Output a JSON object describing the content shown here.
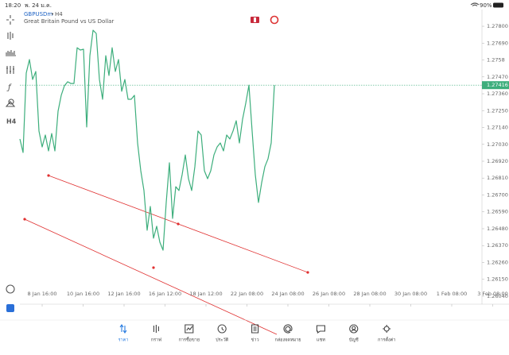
{
  "status_bar": {
    "time": "18:20",
    "date": "พ. 24 ม.ค.",
    "battery": "90%"
  },
  "chart_data": {
    "type": "line",
    "symbol": "GBPUSDm",
    "timeframe": "H4",
    "description": "Great Britain Pound vs US Dollar",
    "color": "#3dae7c",
    "values": [
      1.27065,
      1.26977,
      1.27495,
      1.27583,
      1.27453,
      1.27505,
      1.27117,
      1.27013,
      1.27091,
      1.26987,
      1.27101,
      1.26987,
      1.27246,
      1.2735,
      1.27412,
      1.27438,
      1.27427,
      1.27427,
      1.2766,
      1.27645,
      1.2765,
      1.27143,
      1.27608,
      1.27774,
      1.27753,
      1.27453,
      1.27324,
      1.27608,
      1.27479,
      1.2766,
      1.27505,
      1.27583,
      1.27376,
      1.27453,
      1.27324,
      1.27324,
      1.2735,
      1.27039,
      1.26858,
      1.26729,
      1.2647,
      1.26625,
      1.26418,
      1.26496,
      1.26392,
      1.2634,
      1.26651,
      1.2691,
      1.26547,
      1.26754,
      1.26729,
      1.26832,
      1.26961,
      1.26806,
      1.26729,
      1.26884,
      1.27117,
      1.27091,
      1.26858,
      1.26806,
      1.26858,
      1.26961,
      1.27013,
      1.27039,
      1.26987,
      1.27091,
      1.27065,
      1.27117,
      1.27184,
      1.27039,
      1.27194,
      1.27298,
      1.27416,
      1.27117,
      1.26832,
      1.26651,
      1.2678,
      1.26884,
      1.26936,
      1.27039,
      1.27416
    ],
    "current_price": 1.27416,
    "ylim": [
      1.25988,
      1.27909
    ],
    "yticks": [
      {
        "value": 1.278,
        "label": "1.27800"
      },
      {
        "value": 1.2769,
        "label": "1.27690"
      },
      1.2758,
      {
        "value": 1.2747,
        "label": "1.27470"
      },
      {
        "value": 1.2736,
        "label": "1.27360"
      },
      {
        "value": 1.2725,
        "label": "1.27250"
      },
      {
        "value": 1.2714,
        "label": "1.27140"
      },
      {
        "value": 1.2703,
        "label": "1.27030"
      },
      {
        "value": 1.2692,
        "label": "1.26920"
      },
      {
        "value": 1.2681,
        "label": "1.26810"
      },
      {
        "value": 1.267,
        "label": "1.26700"
      },
      {
        "value": 1.2659,
        "label": "1.26590"
      },
      {
        "value": 1.2648,
        "label": "1.26480"
      },
      {
        "value": 1.2637,
        "label": "1.26370"
      },
      {
        "value": 1.2626,
        "label": "1.26260"
      },
      {
        "value": 1.2615,
        "label": "1.26150"
      },
      {
        "value": 1.2604,
        "label": "1.26040"
      }
    ],
    "x_labels": [
      "8 Jan 16:00",
      "10 Jan 16:00",
      "12 Jan 16:00",
      "16 Jan 12:00",
      "18 Jan 12:00",
      "22 Jan 08:00",
      "24 Jan 08:00",
      "26 Jan 08:00",
      "28 Jan 08:00",
      "30 Jan 08:00",
      "1 Feb 08:00",
      "3 Feb 08:00"
    ]
  },
  "nav": {
    "items": [
      "ราคา",
      "กราฟ",
      "การซื้อขาย",
      "ประวัติ",
      "ข่าว",
      "กล่องจดหมาย",
      "แชท",
      "บัญชี",
      "การตั้งค่า"
    ]
  }
}
